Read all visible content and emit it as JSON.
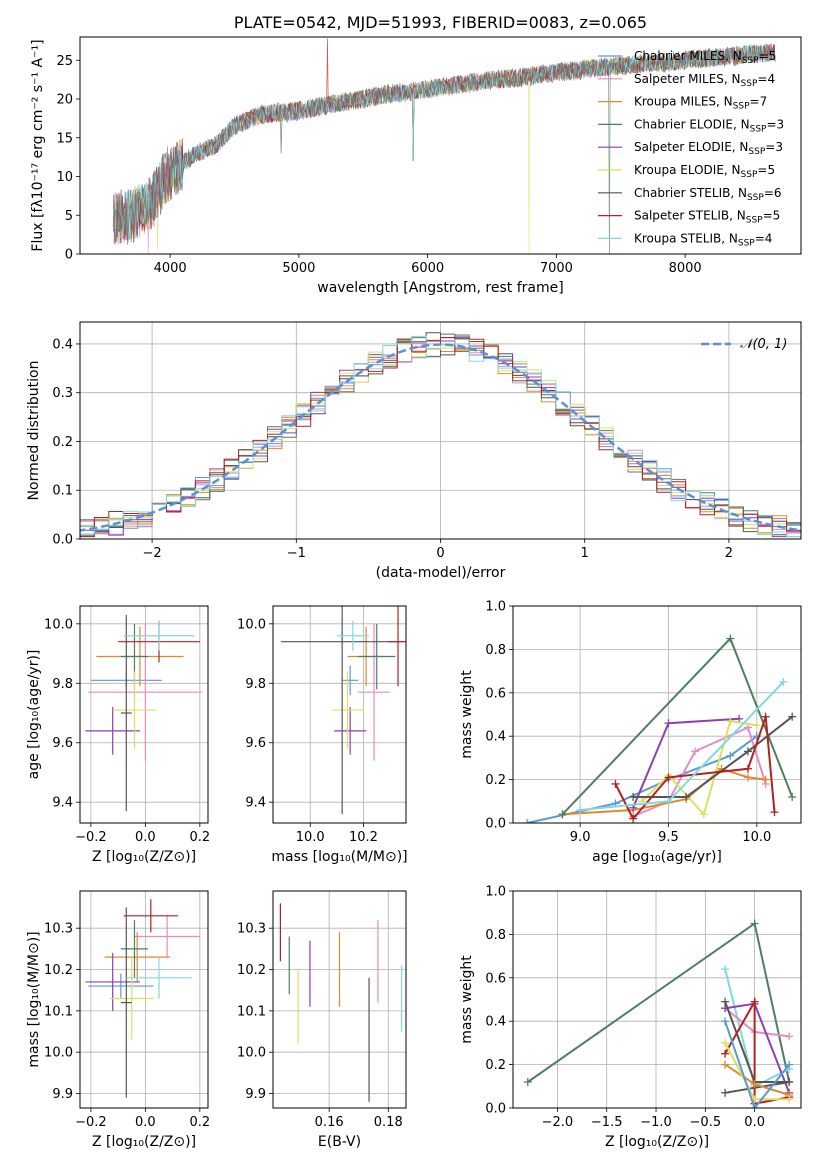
{
  "colors": {
    "Chabrier MILES": "#5b9bd5",
    "Salpeter MILES": "#e68bc3",
    "Kroupa MILES": "#e08a2e",
    "Chabrier ELODIE": "#4f7f5f",
    "Salpeter ELODIE": "#8f3fb0",
    "Kroupa ELODIE": "#dce05f",
    "Chabrier STELIB": "#555555",
    "Salpeter STELIB": "#b22222",
    "Kroupa STELIB": "#80d8e0",
    "gauss": "#5b8fd6"
  },
  "chart_data": [
    {
      "id": "spectrum",
      "type": "line",
      "title": "PLATE=0542, MJD=51993, FIBERID=0083, z=0.065",
      "xlabel": "wavelength [Angstrom, rest frame]",
      "ylabel": "Flux [fλ10⁻¹⁷ erg cm⁻² s⁻¹ A⁻¹]",
      "xlim": [
        3300,
        8900
      ],
      "ylim": [
        0,
        28
      ],
      "xticks": [
        4000,
        5000,
        6000,
        7000,
        8000
      ],
      "yticks": [
        0,
        5,
        10,
        15,
        20,
        25
      ],
      "grid": false,
      "legend_position": "right",
      "continuum": {
        "x": [
          3550,
          3700,
          3850,
          3950,
          4050,
          4200,
          4350,
          4500,
          4700,
          4900,
          5100,
          5300,
          5500,
          5700,
          5900,
          6100,
          6300,
          6500,
          6700,
          6900,
          7100,
          7300,
          7500,
          7700,
          7900,
          8100,
          8300,
          8500,
          8700
        ],
        "y": [
          4.5,
          5,
          6.5,
          9.5,
          11,
          13,
          14,
          16.5,
          18,
          18.3,
          18.8,
          19.5,
          20,
          20.7,
          21,
          21.5,
          22,
          22.5,
          22.7,
          23.2,
          23.6,
          24,
          24.3,
          24.6,
          24.8,
          25.2,
          25.4,
          25.8,
          26
        ]
      },
      "legend": [
        {
          "label": "Chabrier MILES, N",
          "sub": "SSP",
          "suffix": "=5"
        },
        {
          "label": "Salpeter MILES, N",
          "sub": "SSP",
          "suffix": "=4"
        },
        {
          "label": "Kroupa MILES, N",
          "sub": "SSP",
          "suffix": "=7"
        },
        {
          "label": "Chabrier ELODIE, N",
          "sub": "SSP",
          "suffix": "=3"
        },
        {
          "label": "Salpeter ELODIE, N",
          "sub": "SSP",
          "suffix": "=3"
        },
        {
          "label": "Kroupa ELODIE, N",
          "sub": "SSP",
          "suffix": "=5"
        },
        {
          "label": "Chabrier STELIB, N",
          "sub": "SSP",
          "suffix": "=6"
        },
        {
          "label": "Salpeter STELIB, N",
          "sub": "SSP",
          "suffix": "=5"
        },
        {
          "label": "Kroupa STELIB, N",
          "sub": "SSP",
          "suffix": "=4"
        }
      ]
    },
    {
      "id": "residuals",
      "type": "line",
      "xlabel": "(data-model)/error",
      "ylabel": "Normed distribution",
      "xlim": [
        -2.5,
        2.5
      ],
      "ylim": [
        0,
        0.445
      ],
      "xticks": [
        -2,
        -1,
        0,
        1,
        2
      ],
      "yticks": [
        0.0,
        0.1,
        0.2,
        0.3,
        0.4
      ],
      "grid": true,
      "legend": [
        "𝒩(0, 1)"
      ],
      "legend_position": "top-right"
    },
    {
      "id": "age_vs_Z",
      "type": "scatter",
      "xlabel": "Z [log₁₀(Z/Z⊙)]",
      "ylabel": "age  [log₁₀(age/yr)]",
      "xlim": [
        -0.24,
        0.23
      ],
      "ylim": [
        9.33,
        10.06
      ],
      "xticks": [
        -0.2,
        0.0,
        0.2
      ],
      "yticks": [
        9.4,
        9.6,
        9.8,
        10.0
      ],
      "grid": true,
      "points": [
        {
          "series": "Chabrier MILES",
          "x": -0.07,
          "xerr": 0.13,
          "y": 9.81,
          "yerr": 0.03
        },
        {
          "series": "Salpeter MILES",
          "x": 0.0,
          "xerr": 0.21,
          "y": 9.77,
          "yerr": 0.23
        },
        {
          "series": "Kroupa MILES",
          "x": -0.02,
          "xerr": 0.16,
          "y": 9.89,
          "yerr": 0.1
        },
        {
          "series": "Chabrier ELODIE",
          "x": -0.04,
          "xerr": 0.05,
          "y": 9.89,
          "yerr": 0.11
        },
        {
          "series": "Salpeter ELODIE",
          "x": -0.12,
          "xerr": 0.1,
          "y": 9.64,
          "yerr": 0.08
        },
        {
          "series": "Kroupa ELODIE",
          "x": -0.04,
          "xerr": 0.08,
          "y": 9.71,
          "yerr": 0.13
        },
        {
          "series": "Chabrier STELIB",
          "x": -0.07,
          "xerr": 0.02,
          "y": 9.7,
          "yerr": 0.33
        },
        {
          "series": "Salpeter STELIB",
          "x": 0.05,
          "xerr": 0.15,
          "y": 9.94,
          "yerr": 0.07
        },
        {
          "series": "Kroupa STELIB",
          "x": 0.05,
          "xerr": 0.13,
          "y": 9.96,
          "yerr": 0.05
        }
      ]
    },
    {
      "id": "age_vs_mass",
      "type": "scatter",
      "xlabel": "mass [log₁₀(M/M⊙)]",
      "ylabel": "",
      "xlim": [
        9.86,
        10.36
      ],
      "ylim": [
        9.33,
        10.06
      ],
      "xticks": [
        10.0,
        10.2
      ],
      "yticks": [
        9.4,
        9.6,
        9.8,
        10.0
      ],
      "grid": true,
      "points": [
        {
          "series": "Chabrier MILES",
          "x": 10.15,
          "xerr": 0.03,
          "y": 9.81,
          "yerr": 0.05
        },
        {
          "series": "Salpeter MILES",
          "x": 10.24,
          "xerr": 0.06,
          "y": 9.77,
          "yerr": 0.23
        },
        {
          "series": "Kroupa MILES",
          "x": 10.21,
          "xerr": 0.07,
          "y": 9.89,
          "yerr": 0.1
        },
        {
          "series": "Chabrier ELODIE",
          "x": 10.25,
          "xerr": 0.07,
          "y": 9.89,
          "yerr": 0.11
        },
        {
          "series": "Salpeter ELODIE",
          "x": 10.15,
          "xerr": 0.06,
          "y": 9.64,
          "yerr": 0.08
        },
        {
          "series": "Kroupa ELODIE",
          "x": 10.14,
          "xerr": 0.06,
          "y": 9.71,
          "yerr": 0.13
        },
        {
          "series": "Chabrier STELIB",
          "x": 10.12,
          "xerr": 0.23,
          "y": 9.94,
          "yerr": 0.58
        },
        {
          "series": "Salpeter STELIB",
          "x": 10.33,
          "xerr": 0.04,
          "y": 9.94,
          "yerr": 0.15
        },
        {
          "series": "Kroupa STELIB",
          "x": 10.16,
          "xerr": 0.06,
          "y": 9.96,
          "yerr": 0.05
        }
      ]
    },
    {
      "id": "weights_vs_age",
      "type": "line",
      "xlabel": "age  [log₁₀(age/yr)]",
      "ylabel": "mass weight",
      "xlim": [
        8.62,
        10.25
      ],
      "ylim": [
        0,
        1.0
      ],
      "xticks": [
        9.0,
        9.5,
        10.0
      ],
      "yticks": [
        0.0,
        0.2,
        0.4,
        0.6,
        0.8,
        1.0
      ],
      "grid": true,
      "series": [
        {
          "name": "Chabrier MILES",
          "x": [
            8.7,
            9.2,
            9.5,
            9.85,
            10.0
          ],
          "y": [
            0.0,
            0.09,
            0.2,
            0.31,
            0.4
          ]
        },
        {
          "name": "Salpeter MILES",
          "x": [
            9.3,
            9.5,
            9.65,
            9.95,
            10.05
          ],
          "y": [
            0.03,
            0.1,
            0.33,
            0.44,
            0.18
          ]
        },
        {
          "name": "Kroupa MILES",
          "x": [
            8.9,
            9.3,
            9.6,
            9.8,
            9.95,
            10.05
          ],
          "y": [
            0.04,
            0.06,
            0.11,
            0.25,
            0.21,
            0.2
          ]
        },
        {
          "name": "Chabrier ELODIE",
          "x": [
            8.9,
            9.85,
            10.2
          ],
          "y": [
            0.04,
            0.85,
            0.12
          ]
        },
        {
          "name": "Salpeter ELODIE",
          "x": [
            9.3,
            9.5,
            9.9
          ],
          "y": [
            0.07,
            0.46,
            0.48
          ]
        },
        {
          "name": "Kroupa ELODIE",
          "x": [
            9.35,
            9.5,
            9.7,
            9.85,
            10.0
          ],
          "y": [
            0.1,
            0.22,
            0.04,
            0.47,
            0.45
          ]
        },
        {
          "name": "Chabrier STELIB",
          "x": [
            9.3,
            9.6,
            9.95,
            10.2
          ],
          "y": [
            0.12,
            0.12,
            0.33,
            0.49
          ]
        },
        {
          "name": "Salpeter STELIB",
          "x": [
            9.2,
            9.3,
            9.5,
            9.95,
            10.05,
            10.1
          ],
          "y": [
            0.18,
            0.02,
            0.21,
            0.25,
            0.49,
            0.05
          ]
        },
        {
          "name": "Kroupa STELIB",
          "x": [
            9.0,
            9.5,
            10.15
          ],
          "y": [
            0.06,
            0.1,
            0.65
          ]
        }
      ]
    },
    {
      "id": "mass_vs_Z",
      "type": "scatter",
      "xlabel": "Z [log₁₀(Z/Z⊙)]",
      "ylabel": "mass [log₁₀(M/M⊙)]",
      "xlim": [
        -0.24,
        0.23
      ],
      "ylim": [
        9.865,
        10.39
      ],
      "xticks": [
        -0.2,
        0.0,
        0.2
      ],
      "yticks": [
        9.9,
        10.0,
        10.1,
        10.2,
        10.3
      ],
      "grid": true,
      "points": [
        {
          "series": "Chabrier MILES",
          "x": -0.09,
          "xerr": 0.12,
          "y": 10.16,
          "yerr": 0.03
        },
        {
          "series": "Salpeter MILES",
          "x": 0.08,
          "xerr": 0.12,
          "y": 10.28,
          "yerr": 0.05
        },
        {
          "series": "Kroupa MILES",
          "x": -0.03,
          "xerr": 0.12,
          "y": 10.23,
          "yerr": 0.06
        },
        {
          "series": "Chabrier ELODIE",
          "x": -0.04,
          "xerr": 0.05,
          "y": 10.25,
          "yerr": 0.07
        },
        {
          "series": "Salpeter ELODIE",
          "x": -0.12,
          "xerr": 0.1,
          "y": 10.17,
          "yerr": 0.07
        },
        {
          "series": "Kroupa ELODIE",
          "x": -0.05,
          "xerr": 0.08,
          "y": 10.13,
          "yerr": 0.1
        },
        {
          "series": "Chabrier STELIB",
          "x": -0.07,
          "xerr": 0.02,
          "y": 10.12,
          "yerr": 0.23
        },
        {
          "series": "Salpeter STELIB",
          "x": 0.02,
          "xerr": 0.1,
          "y": 10.33,
          "yerr": 0.04
        },
        {
          "series": "Kroupa STELIB",
          "x": 0.05,
          "xerr": 0.12,
          "y": 10.18,
          "yerr": 0.05
        }
      ]
    },
    {
      "id": "mass_vs_EBV",
      "type": "scatter",
      "xlabel": "E(B-V)",
      "ylabel": "",
      "xlim": [
        0.141,
        0.186
      ],
      "ylim": [
        9.865,
        10.39
      ],
      "xticks": [
        0.16,
        0.18
      ],
      "yticks": [
        9.9,
        10.0,
        10.1,
        10.2,
        10.3
      ],
      "grid": true,
      "points": [
        {
          "series": "Salpeter STELIB",
          "x": 0.1435,
          "y": 10.29,
          "yerr": 0.07
        },
        {
          "series": "Chabrier ELODIE",
          "x": 0.1465,
          "y": 10.21,
          "yerr": 0.07
        },
        {
          "series": "Kroupa ELODIE",
          "x": 0.1495,
          "y": 10.11,
          "yerr": 0.09
        },
        {
          "series": "Salpeter ELODIE",
          "x": 0.1535,
          "y": 10.19,
          "yerr": 0.08
        },
        {
          "series": "Kroupa MILES",
          "x": 0.1635,
          "y": 10.2,
          "yerr": 0.09
        },
        {
          "series": "Chabrier STELIB",
          "x": 0.1735,
          "y": 10.03,
          "yerr": 0.15
        },
        {
          "series": "Salpeter MILES",
          "x": 0.1765,
          "y": 10.22,
          "yerr": 0.1
        },
        {
          "series": "Kroupa STELIB",
          "x": 0.1845,
          "y": 10.13,
          "yerr": 0.08
        }
      ]
    },
    {
      "id": "weights_vs_Z",
      "type": "line",
      "xlabel": "Z [log₁₀(Z/Z⊙)]",
      "ylabel": "mass weight",
      "xlim": [
        -2.45,
        0.47
      ],
      "ylim": [
        0,
        1.0
      ],
      "xticks": [
        -2.0,
        -1.5,
        -1.0,
        -0.5,
        0.0
      ],
      "yticks": [
        0.0,
        0.2,
        0.4,
        0.6,
        0.8,
        1.0
      ],
      "grid": true,
      "series": [
        {
          "name": "Chabrier ELODIE",
          "x": [
            -2.3,
            0.0,
            0.35
          ],
          "y": [
            0.12,
            0.85,
            0.12
          ]
        },
        {
          "name": "Kroupa STELIB",
          "x": [
            -0.3,
            0.0,
            0.35
          ],
          "y": [
            0.64,
            0.1,
            0.18
          ]
        },
        {
          "name": "Salpeter MILES",
          "x": [
            -0.3,
            0.0,
            0.35
          ],
          "y": [
            0.46,
            0.35,
            0.33
          ]
        },
        {
          "name": "Salpeter ELODIE",
          "x": [
            -0.3,
            0.0,
            0.35
          ],
          "y": [
            0.46,
            0.48,
            0.07
          ]
        },
        {
          "name": "Chabrier STELIB",
          "x": [
            -0.3,
            0.0,
            0.35,
            -0.3
          ],
          "y": [
            0.49,
            0.12,
            0.12,
            0.07
          ]
        },
        {
          "name": "Salpeter STELIB",
          "x": [
            -0.3,
            0.0,
            0.0,
            0.35
          ],
          "y": [
            0.25,
            0.49,
            0.02,
            0.05
          ]
        },
        {
          "name": "Kroupa MILES",
          "x": [
            -0.3,
            0.0,
            0.35
          ],
          "y": [
            0.2,
            0.11,
            0.06
          ]
        },
        {
          "name": "Kroupa ELODIE",
          "x": [
            -0.3,
            0.0,
            0.35
          ],
          "y": [
            0.3,
            0.04,
            0.04
          ]
        },
        {
          "name": "Chabrier MILES",
          "x": [
            -0.3,
            0.0,
            0.35
          ],
          "y": [
            0.4,
            0.0,
            0.2
          ]
        }
      ]
    }
  ]
}
